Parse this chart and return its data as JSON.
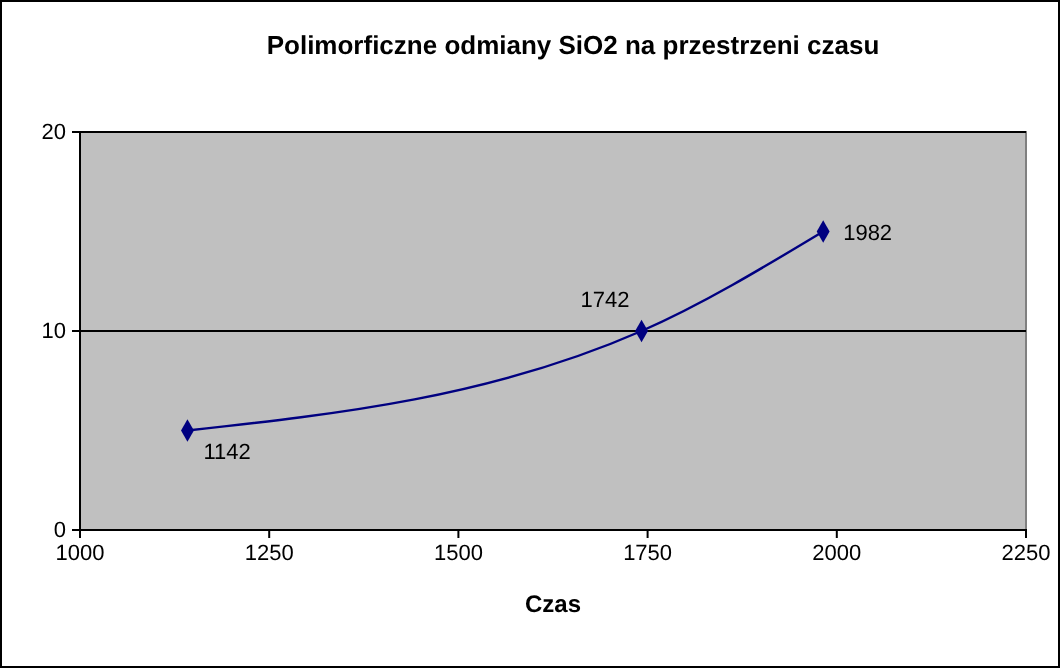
{
  "chart_data": {
    "type": "line",
    "title": "Polimorficzne odmiany SiO2 na przestrzeni czasu",
    "xlabel": "Czas",
    "x": [
      1142,
      1742,
      1982
    ],
    "series": [
      {
        "color": "#000080",
        "values": [
          5,
          10,
          15
        ]
      }
    ],
    "value_labels": [
      "1142",
      "1742",
      "1982"
    ],
    "xlim": [
      1000,
      2250
    ],
    "xticks": [
      1000,
      1250,
      1500,
      1750,
      2000,
      2250
    ],
    "ylim": [
      0,
      20
    ],
    "yticks": [
      0,
      10,
      20
    ],
    "grid": "y",
    "marker": "diamond",
    "line_style": "solid"
  }
}
